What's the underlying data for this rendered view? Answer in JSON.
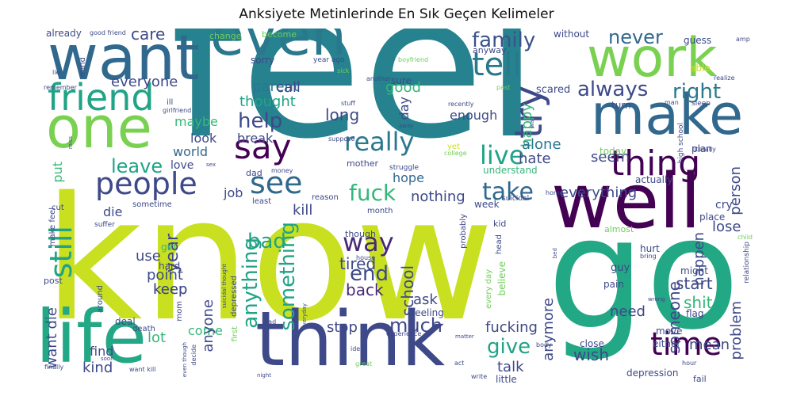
{
  "title": "Anksiyete Metinlerinde En Sık Geçen Kelimeler",
  "colors": {
    "purple": "#440154",
    "indigo": "#3b528b",
    "blue": "#31688e",
    "teal": "#26828e",
    "green": "#35b779",
    "lime": "#c8e020",
    "light": "#6ece58"
  },
  "words": [
    {
      "text": "feel",
      "color": "#26828e"
    },
    {
      "text": "know",
      "color": "#c8e020"
    },
    {
      "text": "go",
      "color": "#22a884"
    },
    {
      "text": "want",
      "color": "#31688e"
    },
    {
      "text": "even",
      "color": "#2a788e"
    },
    {
      "text": "work",
      "color": "#7ad151"
    },
    {
      "text": "make",
      "color": "#31688e"
    },
    {
      "text": "well",
      "color": "#440154"
    },
    {
      "text": "think",
      "color": "#3e4989"
    },
    {
      "text": "life",
      "color": "#22a884"
    },
    {
      "text": "one",
      "color": "#7ad151"
    },
    {
      "text": "friend",
      "color": "#20a386"
    },
    {
      "text": "people",
      "color": "#3e4989"
    },
    {
      "text": "say",
      "color": "#440154"
    },
    {
      "text": "see",
      "color": "#31688e"
    },
    {
      "text": "tell",
      "color": "#2a788e"
    },
    {
      "text": "try",
      "color": "#3e4989"
    },
    {
      "text": "thing",
      "color": "#440154"
    },
    {
      "text": "time",
      "color": "#440154"
    },
    {
      "text": "really",
      "color": "#2a788e"
    },
    {
      "text": "still",
      "color": "#20a386"
    },
    {
      "text": "way",
      "color": "#482878"
    },
    {
      "text": "end",
      "color": "#3e4989"
    },
    {
      "text": "fuck",
      "color": "#35b779"
    },
    {
      "text": "live",
      "color": "#20a386"
    },
    {
      "text": "take",
      "color": "#31688e"
    },
    {
      "text": "help",
      "color": "#3e4989"
    },
    {
      "text": "leave",
      "color": "#20a386"
    },
    {
      "text": "family",
      "color": "#3b528b"
    },
    {
      "text": "never",
      "color": "#31688e"
    },
    {
      "text": "always",
      "color": "#3e4989"
    },
    {
      "text": "right",
      "color": "#2a788e"
    },
    {
      "text": "care",
      "color": "#3e4989"
    },
    {
      "text": "everyone",
      "color": "#3e4989"
    },
    {
      "text": "thought",
      "color": "#20a386"
    },
    {
      "text": "parent",
      "color": "#2a788e"
    },
    {
      "text": "call",
      "color": "#3e4989"
    },
    {
      "text": "good",
      "color": "#35b779"
    },
    {
      "text": "long",
      "color": "#3e4989"
    },
    {
      "text": "enough",
      "color": "#3e4989"
    },
    {
      "text": "happy",
      "color": "#35b779"
    },
    {
      "text": "alone",
      "color": "#2a788e"
    },
    {
      "text": "hate",
      "color": "#3e4989"
    },
    {
      "text": "seem",
      "color": "#3e4989"
    },
    {
      "text": "person",
      "color": "#3e4989"
    },
    {
      "text": "anything",
      "color": "#20a386"
    },
    {
      "text": "bad",
      "color": "#20a386"
    },
    {
      "text": "something",
      "color": "#20a386"
    },
    {
      "text": "year",
      "color": "#3e4989"
    },
    {
      "text": "hope",
      "color": "#31688e"
    },
    {
      "text": "nothing",
      "color": "#3e4989"
    },
    {
      "text": "kill",
      "color": "#3e4989"
    },
    {
      "text": "everything",
      "color": "#3e4989"
    },
    {
      "text": "happen",
      "color": "#3e4989"
    },
    {
      "text": "lose",
      "color": "#3e4989"
    },
    {
      "text": "tired",
      "color": "#3e4989"
    },
    {
      "text": "school",
      "color": "#3e4989"
    },
    {
      "text": "back",
      "color": "#482878"
    },
    {
      "text": "point",
      "color": "#3e4989"
    },
    {
      "text": "keep",
      "color": "#3e4989"
    },
    {
      "text": "use",
      "color": "#3e4989"
    },
    {
      "text": "maybe",
      "color": "#35b779"
    },
    {
      "text": "look",
      "color": "#3e4989"
    },
    {
      "text": "break",
      "color": "#3e4989"
    },
    {
      "text": "world",
      "color": "#31688e"
    },
    {
      "text": "love",
      "color": "#3e4989"
    },
    {
      "text": "job",
      "color": "#3e4989"
    },
    {
      "text": "die",
      "color": "#3e4989"
    },
    {
      "text": "put",
      "color": "#35b779"
    },
    {
      "text": "much",
      "color": "#3e4989"
    },
    {
      "text": "give",
      "color": "#20a386"
    },
    {
      "text": "stop",
      "color": "#3e4989"
    },
    {
      "text": "fucking",
      "color": "#3e4989"
    },
    {
      "text": "talk",
      "color": "#3e4989"
    },
    {
      "text": "wish",
      "color": "#3e4989"
    },
    {
      "text": "need",
      "color": "#3e4989"
    },
    {
      "text": "start",
      "color": "#3e4989"
    },
    {
      "text": "shit",
      "color": "#35b779"
    },
    {
      "text": "mean",
      "color": "#3e4989"
    },
    {
      "text": "someone",
      "color": "#3e4989"
    },
    {
      "text": "problem",
      "color": "#3e4989"
    },
    {
      "text": "anymore",
      "color": "#3e4989"
    },
    {
      "text": "ask",
      "color": "#3e4989"
    },
    {
      "text": "lot",
      "color": "#35b779"
    },
    {
      "text": "kind",
      "color": "#3e4989"
    },
    {
      "text": "come",
      "color": "#35b779"
    },
    {
      "text": "find",
      "color": "#3e4989"
    },
    {
      "text": "want die",
      "color": "#3e4989"
    },
    {
      "text": "anyone",
      "color": "#3e4989"
    },
    {
      "text": "keep",
      "color": "#3e4989"
    },
    {
      "text": "already",
      "color": "#3e4989"
    },
    {
      "text": "good friend",
      "color": "#3e4989"
    },
    {
      "text": "change",
      "color": "#6ece58"
    },
    {
      "text": "become",
      "color": "#6ece58"
    },
    {
      "text": "without",
      "color": "#3e4989"
    },
    {
      "text": "guess",
      "color": "#3e4989"
    },
    {
      "text": "amp",
      "color": "#3e4989"
    },
    {
      "text": "sorry",
      "color": "#3e4989"
    },
    {
      "text": "year ago",
      "color": "#3e4989"
    },
    {
      "text": "boyfriend",
      "color": "#6ece58"
    },
    {
      "text": "anyway",
      "color": "#3e4989"
    },
    {
      "text": "mind",
      "color": "#3e4989"
    },
    {
      "text": "sick",
      "color": "#6ece58"
    },
    {
      "text": "another",
      "color": "#3e4989"
    },
    {
      "text": "sure",
      "color": "#3e4989"
    },
    {
      "text": "scared",
      "color": "#3e4989"
    },
    {
      "text": "able",
      "color": "#c8e020"
    },
    {
      "text": "turn",
      "color": "#3e4989"
    },
    {
      "text": "sleep",
      "color": "#3e4989"
    },
    {
      "text": "ill",
      "color": "#3e4989"
    },
    {
      "text": "girlfriend",
      "color": "#3e4989"
    },
    {
      "text": "day",
      "color": "#3e4989"
    },
    {
      "text": "stuff",
      "color": "#3e4989"
    },
    {
      "text": "recently",
      "color": "#3e4989"
    },
    {
      "text": "high school",
      "color": "#3e4989"
    },
    {
      "text": "plan",
      "color": "#3e4989"
    },
    {
      "text": "literally",
      "color": "#3e4989"
    },
    {
      "text": "actually",
      "color": "#3e4989"
    },
    {
      "text": "suppose",
      "color": "#3e4989"
    },
    {
      "text": "mother",
      "color": "#3e4989"
    },
    {
      "text": "struggle",
      "color": "#3e4989"
    },
    {
      "text": "college",
      "color": "#6ece58"
    },
    {
      "text": "today",
      "color": "#6ece58"
    },
    {
      "text": "understand",
      "color": "#35b779"
    },
    {
      "text": "dad",
      "color": "#3e4989"
    },
    {
      "text": "money",
      "color": "#3e4989"
    },
    {
      "text": "week",
      "color": "#3e4989"
    },
    {
      "text": "month",
      "color": "#3e4989"
    },
    {
      "text": "reason",
      "color": "#3e4989"
    },
    {
      "text": "least",
      "color": "#3e4989"
    },
    {
      "text": "home",
      "color": "#3e4989"
    },
    {
      "text": "suicidal",
      "color": "#3e4989"
    },
    {
      "text": "cry",
      "color": "#3e4989"
    },
    {
      "text": "place",
      "color": "#3e4989"
    },
    {
      "text": "child",
      "color": "#6ece58"
    },
    {
      "text": "sometime",
      "color": "#3e4989"
    },
    {
      "text": "suffer",
      "color": "#3e4989"
    },
    {
      "text": "make feel",
      "color": "#3e4989"
    },
    {
      "text": "cut",
      "color": "#3e4989"
    },
    {
      "text": "girl",
      "color": "#35b779"
    },
    {
      "text": "hard",
      "color": "#3e4989"
    },
    {
      "text": "though",
      "color": "#3e4989"
    },
    {
      "text": "probably",
      "color": "#3e4989"
    },
    {
      "text": "kid",
      "color": "#3e4989"
    },
    {
      "text": "head",
      "color": "#3e4989"
    },
    {
      "text": "almost",
      "color": "#6ece58"
    },
    {
      "text": "hurt",
      "color": "#3e4989"
    },
    {
      "text": "bring",
      "color": "#3e4989"
    },
    {
      "text": "might",
      "color": "#3e4989"
    },
    {
      "text": "guy",
      "color": "#3e4989"
    },
    {
      "text": "pain",
      "color": "#3e4989"
    },
    {
      "text": "relationship",
      "color": "#3e4989"
    },
    {
      "text": "depressed",
      "color": "#3e4989"
    },
    {
      "text": "suicidal thought",
      "color": "#3e4989"
    },
    {
      "text": "post",
      "color": "#3e4989"
    },
    {
      "text": "around",
      "color": "#3e4989"
    },
    {
      "text": "deal",
      "color": "#3e4989"
    },
    {
      "text": "mom",
      "color": "#3e4989"
    },
    {
      "text": "death",
      "color": "#3e4989"
    },
    {
      "text": "sad",
      "color": "#3e4989"
    },
    {
      "text": "first",
      "color": "#6ece58"
    },
    {
      "text": "every day",
      "color": "#6ece58"
    },
    {
      "text": "believe",
      "color": "#6ece58"
    },
    {
      "text": "feeling",
      "color": "#3e4989"
    },
    {
      "text": "experience",
      "color": "#3e4989"
    },
    {
      "text": "idea",
      "color": "#3e4989"
    },
    {
      "text": "matter",
      "color": "#3e4989"
    },
    {
      "text": "wrong",
      "color": "#3e4989"
    },
    {
      "text": "move",
      "color": "#3e4989"
    },
    {
      "text": "flag",
      "color": "#3e4989"
    },
    {
      "text": "either",
      "color": "#3e4989"
    },
    {
      "text": "close",
      "color": "#3e4989"
    },
    {
      "text": "body",
      "color": "#3e4989"
    },
    {
      "text": "act",
      "color": "#3e4989"
    },
    {
      "text": "great",
      "color": "#6ece58"
    },
    {
      "text": "write",
      "color": "#3e4989"
    },
    {
      "text": "little",
      "color": "#3e4989"
    },
    {
      "text": "depression",
      "color": "#3e4989"
    },
    {
      "text": "fail",
      "color": "#3e4989"
    },
    {
      "text": "finally",
      "color": "#3e4989"
    },
    {
      "text": "want kill",
      "color": "#3e4989"
    },
    {
      "text": "decide",
      "color": "#3e4989"
    },
    {
      "text": "even though",
      "color": "#3e4989"
    },
    {
      "text": "night",
      "color": "#3e4989"
    },
    {
      "text": "soon",
      "color": "#3e4989"
    },
    {
      "text": "everyday",
      "color": "#3e4989"
    },
    {
      "text": "remember",
      "color": "#3e4989"
    },
    {
      "text": "lie",
      "color": "#3e4989"
    },
    {
      "text": "miss",
      "color": "#3e4989"
    },
    {
      "text": "sex",
      "color": "#3e4989"
    },
    {
      "text": "house",
      "color": "#3e4989"
    },
    {
      "text": "yet",
      "color": "#c8e020"
    },
    {
      "text": "past",
      "color": "#6ece58"
    },
    {
      "text": "wait",
      "color": "#3e4989"
    },
    {
      "text": "man",
      "color": "#3e4989"
    },
    {
      "text": "away",
      "color": "#3e4989"
    },
    {
      "text": "realize",
      "color": "#3e4989"
    },
    {
      "text": "bed",
      "color": "#3e4989"
    },
    {
      "text": "hour",
      "color": "#3e4989"
    }
  ]
}
